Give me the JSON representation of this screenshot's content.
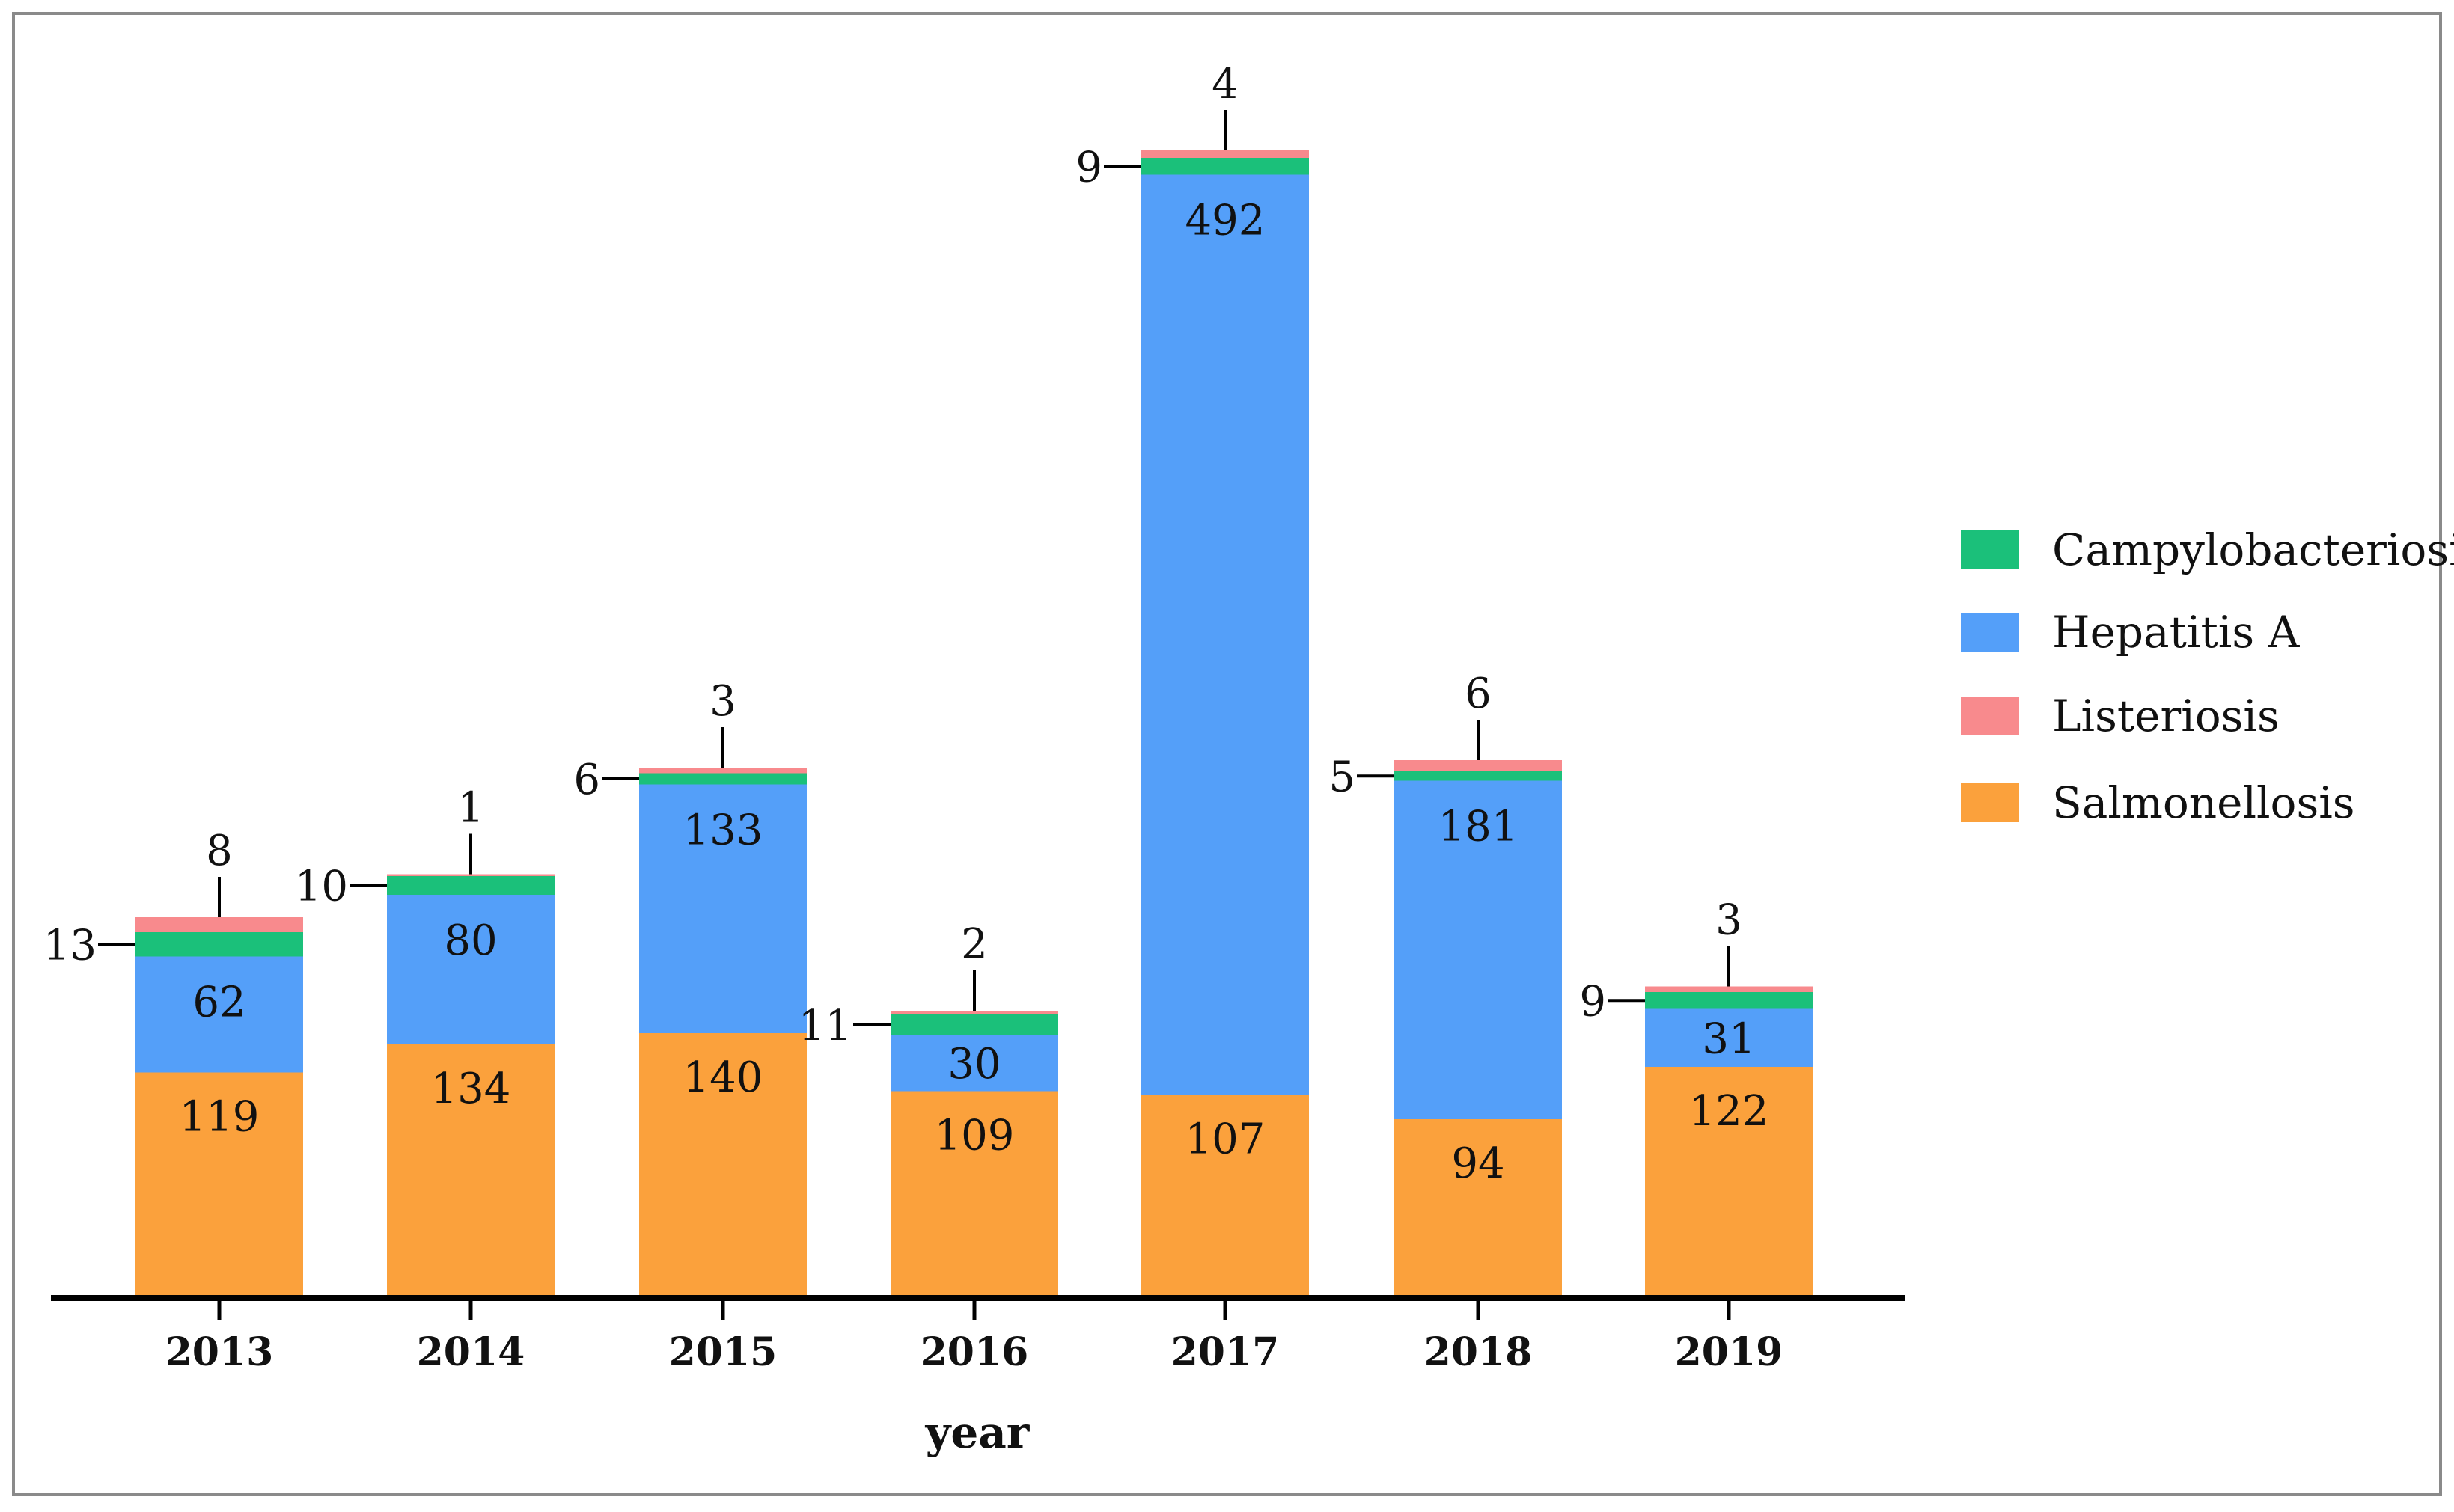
{
  "chart_data": {
    "type": "bar",
    "stacked": true,
    "xlabel": "year",
    "ylabel": "",
    "categories": [
      "2013",
      "2014",
      "2015",
      "2016",
      "2017",
      "2018",
      "2019"
    ],
    "series": [
      {
        "name": "Salmonellosis",
        "color": "#FBA13C",
        "values": [
          119,
          134,
          140,
          109,
          107,
          94,
          122
        ]
      },
      {
        "name": "Hepatitis A",
        "color": "#549FF9",
        "values": [
          62,
          80,
          133,
          30,
          492,
          181,
          31
        ]
      },
      {
        "name": "Campylobacteriosis",
        "color": "#1BC07A",
        "values": [
          13,
          10,
          6,
          11,
          9,
          5,
          9
        ]
      },
      {
        "name": "Listeriosis",
        "color": "#F88A8D",
        "values": [
          8,
          1,
          3,
          2,
          4,
          6,
          3
        ]
      }
    ],
    "legend_order": [
      "Campylobacteriosis",
      "Hepatitis A",
      "Listeriosis",
      "Salmonellosis"
    ],
    "legend_position": "right",
    "ylim": [
      0,
      620
    ],
    "grid": false
  }
}
